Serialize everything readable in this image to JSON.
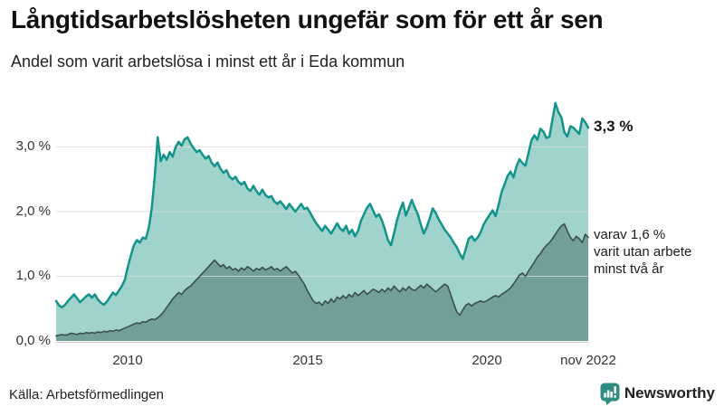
{
  "header": {
    "title": "Långtidsarbetslösheten ungefär som för ett år sen",
    "subtitle": "Andel som varit arbetslösa i minst ett år i Eda kommun"
  },
  "source": {
    "text": "Källa: Arbetsförmedlingen"
  },
  "branding": {
    "name": "Newsworthy",
    "color": "#2e8c82"
  },
  "chart_data": {
    "type": "area",
    "unit": "%",
    "frequency": "monthly",
    "x_start": "2008-01",
    "x_end": "2022-11",
    "ylim": [
      0,
      3.8
    ],
    "grid": true,
    "colors": {
      "grid": "#d9d9d9",
      "baseline": "#c9c9c9",
      "axis_text": "#333333"
    },
    "y_ticks": [
      {
        "value": 0,
        "label": "0,0 %"
      },
      {
        "value": 1,
        "label": "1,0 %"
      },
      {
        "value": 2,
        "label": "2,0 %"
      },
      {
        "value": 3,
        "label": "3,0 %"
      }
    ],
    "x_ticks": [
      {
        "month_index": 24,
        "label": "2010"
      },
      {
        "month_index": 84,
        "label": "2015"
      },
      {
        "month_index": 144,
        "label": "2020"
      },
      {
        "month_index": 178,
        "label": "nov 2022"
      }
    ],
    "series": [
      {
        "name": "Andel arbetslösa minst ett år",
        "last_value": 3.3,
        "line_color": "#12948b",
        "fill_color": "#9fd3cc",
        "line_width": 2.5,
        "values": [
          0.62,
          0.55,
          0.52,
          0.56,
          0.62,
          0.67,
          0.72,
          0.66,
          0.6,
          0.64,
          0.69,
          0.72,
          0.67,
          0.72,
          0.64,
          0.59,
          0.56,
          0.61,
          0.68,
          0.75,
          0.71,
          0.78,
          0.85,
          0.95,
          1.15,
          1.32,
          1.48,
          1.56,
          1.52,
          1.6,
          1.58,
          1.75,
          2.05,
          2.55,
          3.15,
          2.78,
          2.88,
          2.8,
          2.92,
          2.85,
          3.0,
          3.08,
          3.02,
          3.12,
          3.15,
          3.05,
          2.98,
          2.92,
          2.95,
          2.88,
          2.82,
          2.86,
          2.76,
          2.7,
          2.76,
          2.66,
          2.6,
          2.64,
          2.54,
          2.5,
          2.54,
          2.46,
          2.42,
          2.46,
          2.36,
          2.32,
          2.4,
          2.32,
          2.26,
          2.34,
          2.26,
          2.22,
          2.24,
          2.16,
          2.12,
          2.16,
          2.1,
          2.04,
          2.12,
          2.06,
          2.0,
          2.06,
          2.12,
          2.04,
          2.06,
          1.98,
          1.9,
          1.82,
          1.76,
          1.7,
          1.78,
          1.72,
          1.66,
          1.74,
          1.82,
          1.74,
          1.7,
          1.78,
          1.66,
          1.72,
          1.62,
          1.7,
          1.86,
          1.96,
          2.06,
          2.12,
          2.02,
          1.92,
          1.96,
          1.86,
          1.72,
          1.56,
          1.48,
          1.66,
          1.86,
          2.02,
          2.14,
          1.94,
          2.06,
          2.18,
          2.06,
          1.96,
          1.8,
          1.66,
          1.76,
          1.9,
          2.05,
          1.98,
          1.88,
          1.8,
          1.72,
          1.66,
          1.6,
          1.52,
          1.45,
          1.35,
          1.27,
          1.42,
          1.58,
          1.62,
          1.55,
          1.6,
          1.68,
          1.8,
          1.88,
          1.95,
          2.02,
          1.93,
          2.1,
          2.3,
          2.42,
          2.55,
          2.62,
          2.53,
          2.7,
          2.81,
          2.75,
          2.71,
          2.9,
          3.1,
          3.18,
          3.11,
          3.28,
          3.24,
          3.14,
          3.16,
          3.42,
          3.68,
          3.54,
          3.46,
          3.23,
          3.16,
          3.32,
          3.3,
          3.25,
          3.2,
          3.44,
          3.38,
          3.3
        ]
      },
      {
        "name": "Andel arbetslösa minst två år",
        "last_value": 1.6,
        "line_color": "#3b4e51",
        "fill_color": "#719f99",
        "line_width": 1.6,
        "values": [
          0.08,
          0.09,
          0.1,
          0.09,
          0.1,
          0.12,
          0.11,
          0.1,
          0.12,
          0.11,
          0.13,
          0.12,
          0.13,
          0.12,
          0.14,
          0.13,
          0.15,
          0.14,
          0.16,
          0.15,
          0.17,
          0.16,
          0.18,
          0.2,
          0.22,
          0.24,
          0.26,
          0.28,
          0.27,
          0.3,
          0.29,
          0.32,
          0.34,
          0.33,
          0.36,
          0.4,
          0.45,
          0.52,
          0.58,
          0.65,
          0.7,
          0.75,
          0.72,
          0.78,
          0.82,
          0.85,
          0.9,
          0.95,
          1.0,
          1.05,
          1.1,
          1.15,
          1.2,
          1.25,
          1.2,
          1.15,
          1.18,
          1.12,
          1.15,
          1.1,
          1.12,
          1.08,
          1.13,
          1.1,
          1.15,
          1.12,
          1.08,
          1.12,
          1.1,
          1.14,
          1.1,
          1.12,
          1.15,
          1.1,
          1.12,
          1.08,
          1.12,
          1.15,
          1.1,
          1.05,
          1.08,
          1.02,
          0.95,
          0.88,
          0.78,
          0.7,
          0.62,
          0.58,
          0.6,
          0.55,
          0.62,
          0.58,
          0.65,
          0.6,
          0.68,
          0.65,
          0.7,
          0.66,
          0.72,
          0.68,
          0.75,
          0.7,
          0.74,
          0.78,
          0.72,
          0.76,
          0.8,
          0.78,
          0.75,
          0.8,
          0.76,
          0.82,
          0.78,
          0.85,
          0.8,
          0.76,
          0.82,
          0.78,
          0.84,
          0.8,
          0.78,
          0.82,
          0.86,
          0.82,
          0.88,
          0.84,
          0.8,
          0.76,
          0.8,
          0.84,
          0.88,
          0.85,
          0.72,
          0.58,
          0.45,
          0.4,
          0.48,
          0.55,
          0.58,
          0.54,
          0.58,
          0.6,
          0.62,
          0.6,
          0.62,
          0.65,
          0.68,
          0.7,
          0.68,
          0.72,
          0.75,
          0.78,
          0.82,
          0.88,
          0.95,
          1.02,
          1.05,
          1.0,
          1.08,
          1.15,
          1.22,
          1.3,
          1.35,
          1.42,
          1.48,
          1.52,
          1.58,
          1.65,
          1.72,
          1.78,
          1.81,
          1.7,
          1.6,
          1.55,
          1.62,
          1.58,
          1.52,
          1.65,
          1.6
        ]
      }
    ],
    "annotations": [
      {
        "text": "3,3 %",
        "series": 0
      },
      {
        "series": 1,
        "lines": [
          "varav 1,6 %",
          "varit utan arbete",
          "minst två år"
        ]
      }
    ]
  }
}
